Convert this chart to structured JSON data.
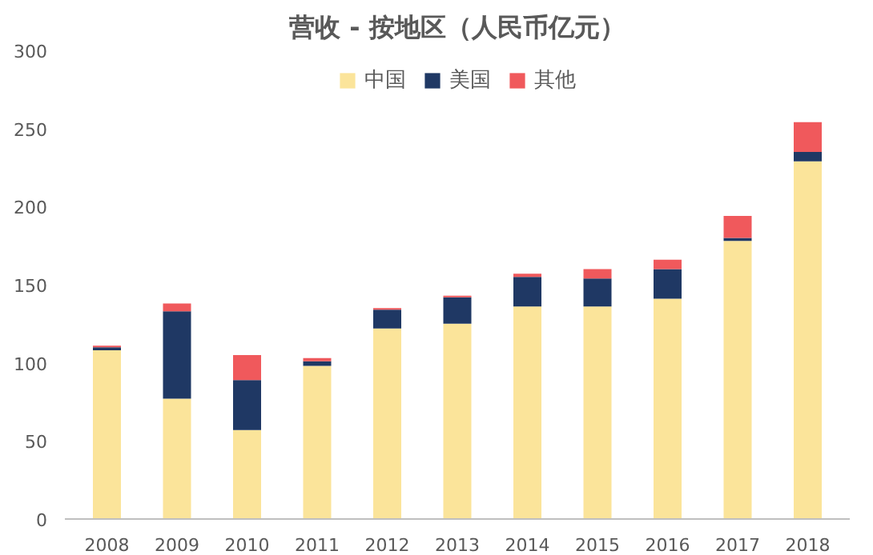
{
  "chart_data": {
    "type": "bar",
    "stacked": true,
    "title": "营收 - 按地区（人民币亿元）",
    "categories": [
      "2008",
      "2009",
      "2010",
      "2011",
      "2012",
      "2013",
      "2014",
      "2015",
      "2016",
      "2017",
      "2018"
    ],
    "series": [
      {
        "name": "中国",
        "color": "#fbe49a",
        "values": [
          108,
          77,
          57,
          98,
          122,
          125,
          136,
          136,
          141,
          178,
          229
        ]
      },
      {
        "name": "美国",
        "color": "#1f3864",
        "values": [
          2,
          56,
          32,
          3,
          12,
          17,
          19,
          18,
          19,
          2,
          6
        ]
      },
      {
        "name": "其他",
        "color": "#f0595c",
        "values": [
          1,
          5,
          16,
          2,
          1,
          1,
          2,
          6,
          6,
          14,
          19
        ]
      }
    ],
    "ylim": [
      0,
      300
    ],
    "yticks": [
      0,
      50,
      100,
      150,
      200,
      250,
      300
    ],
    "grid": false,
    "legend": "top"
  }
}
